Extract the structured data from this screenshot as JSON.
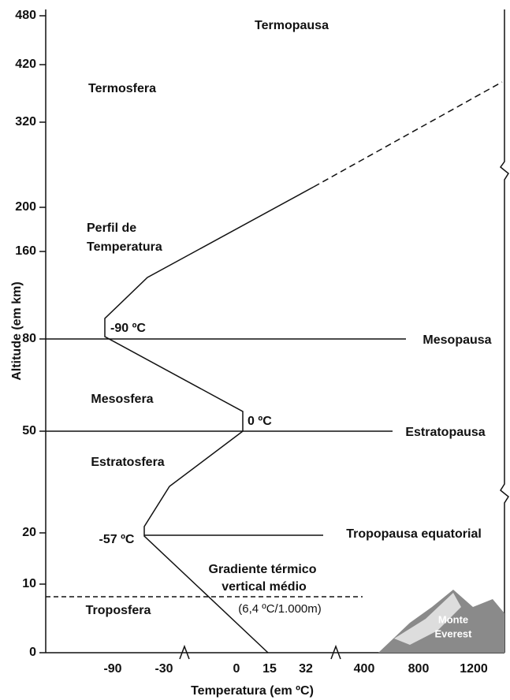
{
  "axes": {
    "y_title": "Altitude (em km)",
    "x_title": "Temperatura (em ºC)",
    "y_ticks": [
      "480",
      "420",
      "320",
      "200",
      "160",
      "80",
      "50",
      "20",
      "10",
      "0"
    ],
    "x_ticks": [
      "-90",
      "-30",
      "0",
      "15",
      "32",
      "400",
      "800",
      "1200"
    ]
  },
  "labels": {
    "termopausa": "Termopausa",
    "termosfera": "Termosfera",
    "perfil": [
      "Perfil de",
      "Temperatura"
    ],
    "t_meso": "-90 ºC",
    "mesopausa": "Mesopausa",
    "mesosfera": "Mesosfera",
    "t_estrato": "0 ºC",
    "estratopausa": "Estratopausa",
    "estratosfera": "Estratosfera",
    "tropopausa": "Tropopausa equatorial",
    "t_tropo": "-57 ºC",
    "gradiente": [
      "Gradiente térmico",
      "vertical médio"
    ],
    "gradiente_valor": "(6,4 ºC/1.000m)",
    "troposfera": "Troposfera",
    "everest": [
      "Monte",
      "Everest"
    ]
  }
}
